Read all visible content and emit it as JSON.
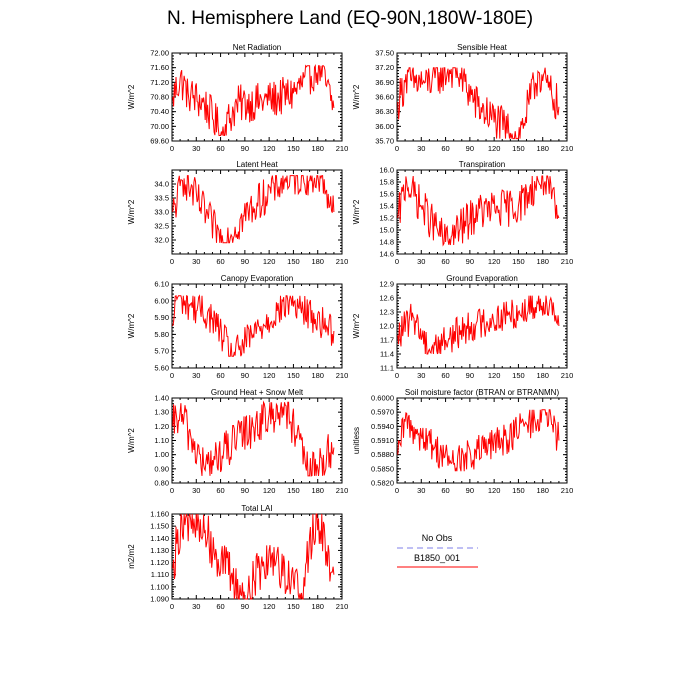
{
  "figure": {
    "title": "N. Hemisphere Land (EQ-90N,180W-180E)"
  },
  "legend": {
    "entries": [
      {
        "label": "No Obs",
        "color": "#9999ee",
        "style": "dashed"
      },
      {
        "label": "B1850_001",
        "color": "#ff0000",
        "style": "solid"
      }
    ]
  },
  "chart_data": [
    {
      "type": "line",
      "title": "Net Radiation",
      "xlabel": "",
      "ylabel": "W/m^2",
      "xlim": [
        0,
        210
      ],
      "ylim": [
        69.6,
        72.0
      ],
      "xticks": [
        0,
        30,
        60,
        90,
        120,
        150,
        180,
        210
      ],
      "yticks": [
        "69.60",
        "70.00",
        "70.40",
        "70.80",
        "71.20",
        "71.60",
        "72.00"
      ],
      "series": [
        {
          "name": "B1850_001",
          "color": "#ff0000",
          "x_start": 1,
          "x_end": 200,
          "key_values": [
            {
              "x": 1,
              "y": 70.8
            },
            {
              "x": 10,
              "y": 71.3
            },
            {
              "x": 20,
              "y": 70.9
            },
            {
              "x": 40,
              "y": 70.6
            },
            {
              "x": 57,
              "y": 70.0
            },
            {
              "x": 60,
              "y": 69.75
            },
            {
              "x": 80,
              "y": 70.6
            },
            {
              "x": 120,
              "y": 70.7
            },
            {
              "x": 150,
              "y": 70.9
            },
            {
              "x": 182,
              "y": 71.65
            },
            {
              "x": 200,
              "y": 70.5
            }
          ],
          "approx_mean": 70.7,
          "approx_min": 69.75,
          "approx_max": 71.65
        }
      ]
    },
    {
      "type": "line",
      "title": "Sensible Heat",
      "xlabel": "",
      "ylabel": "W/m^2",
      "xlim": [
        0,
        210
      ],
      "ylim": [
        35.7,
        37.5
      ],
      "xticks": [
        0,
        30,
        60,
        90,
        120,
        150,
        180,
        210
      ],
      "yticks": [
        "35.70",
        "36.00",
        "36.30",
        "36.60",
        "36.90",
        "37.20",
        "37.50"
      ],
      "series": [
        {
          "name": "B1850_001",
          "color": "#ff0000",
          "x_start": 1,
          "x_end": 200,
          "key_values": [
            {
              "x": 1,
              "y": 36.5
            },
            {
              "x": 10,
              "y": 36.9
            },
            {
              "x": 35,
              "y": 36.9
            },
            {
              "x": 72,
              "y": 37.2
            },
            {
              "x": 100,
              "y": 36.4
            },
            {
              "x": 150,
              "y": 35.75
            },
            {
              "x": 175,
              "y": 37.1
            },
            {
              "x": 200,
              "y": 36.4
            }
          ],
          "approx_mean": 36.45,
          "approx_min": 35.75,
          "approx_max": 37.2
        }
      ]
    },
    {
      "type": "line",
      "title": "Latent Heat",
      "xlabel": "",
      "ylabel": "W/m^2",
      "xlim": [
        0,
        210
      ],
      "ylim": [
        31.5,
        34.5
      ],
      "xticks": [
        0,
        30,
        60,
        90,
        120,
        150,
        180,
        210
      ],
      "yticks": [
        "32.0",
        "32.5",
        "33.0",
        "33.5",
        "34.0"
      ],
      "series": [
        {
          "name": "B1850_001",
          "color": "#ff0000",
          "x_start": 1,
          "x_end": 200,
          "key_values": [
            {
              "x": 1,
              "y": 33.0
            },
            {
              "x": 15,
              "y": 34.2
            },
            {
              "x": 63,
              "y": 31.9
            },
            {
              "x": 100,
              "y": 33.2
            },
            {
              "x": 140,
              "y": 34.2
            },
            {
              "x": 185,
              "y": 34.3
            },
            {
              "x": 200,
              "y": 33.0
            }
          ],
          "approx_mean": 33.1,
          "approx_min": 31.9,
          "approx_max": 34.3
        }
      ]
    },
    {
      "type": "line",
      "title": "Transpiration",
      "xlabel": "",
      "ylabel": "W/m^2",
      "xlim": [
        0,
        210
      ],
      "ylim": [
        14.6,
        16.0
      ],
      "xticks": [
        0,
        30,
        60,
        90,
        120,
        150,
        180,
        210
      ],
      "yticks": [
        "14.6",
        "14.8",
        "15.0",
        "15.2",
        "15.4",
        "15.6",
        "15.8",
        "16.0"
      ],
      "series": [
        {
          "name": "B1850_001",
          "color": "#ff0000",
          "x_start": 1,
          "x_end": 200,
          "key_values": [
            {
              "x": 1,
              "y": 15.2
            },
            {
              "x": 12,
              "y": 15.8
            },
            {
              "x": 30,
              "y": 15.4
            },
            {
              "x": 60,
              "y": 14.8
            },
            {
              "x": 100,
              "y": 15.3
            },
            {
              "x": 150,
              "y": 15.4
            },
            {
              "x": 180,
              "y": 15.9
            },
            {
              "x": 200,
              "y": 15.2
            }
          ],
          "approx_mean": 15.3,
          "approx_min": 14.75,
          "approx_max": 15.9
        }
      ]
    },
    {
      "type": "line",
      "title": "Canopy Evaporation",
      "xlabel": "",
      "ylabel": "W/m^2",
      "xlim": [
        0,
        210
      ],
      "ylim": [
        5.6,
        6.1
      ],
      "xticks": [
        0,
        30,
        60,
        90,
        120,
        150,
        180,
        210
      ],
      "yticks": [
        "5.60",
        "5.70",
        "5.80",
        "5.90",
        "6.00",
        "6.10"
      ],
      "series": [
        {
          "name": "B1850_001",
          "color": "#ff0000",
          "x_start": 1,
          "x_end": 200,
          "key_values": [
            {
              "x": 1,
              "y": 5.85
            },
            {
              "x": 5,
              "y": 6.03
            },
            {
              "x": 50,
              "y": 5.9
            },
            {
              "x": 75,
              "y": 5.67
            },
            {
              "x": 110,
              "y": 5.85
            },
            {
              "x": 145,
              "y": 6.0
            },
            {
              "x": 200,
              "y": 5.82
            }
          ],
          "approx_mean": 5.85,
          "approx_min": 5.67,
          "approx_max": 6.03
        }
      ]
    },
    {
      "type": "line",
      "title": "Ground Evaporation",
      "xlabel": "",
      "ylabel": "W/m^2",
      "xlim": [
        0,
        210
      ],
      "ylim": [
        11.1,
        12.9
      ],
      "xticks": [
        0,
        30,
        60,
        90,
        120,
        150,
        180,
        210
      ],
      "yticks": [
        "11.1",
        "11.4",
        "11.7",
        "12.0",
        "12.3",
        "12.6",
        "12.9"
      ],
      "series": [
        {
          "name": "B1850_001",
          "color": "#ff0000",
          "x_start": 1,
          "x_end": 200,
          "key_values": [
            {
              "x": 1,
              "y": 11.8
            },
            {
              "x": 20,
              "y": 12.2
            },
            {
              "x": 40,
              "y": 11.5
            },
            {
              "x": 90,
              "y": 12.0
            },
            {
              "x": 150,
              "y": 12.3
            },
            {
              "x": 190,
              "y": 12.6
            },
            {
              "x": 200,
              "y": 12.0
            }
          ],
          "approx_mean": 12.05,
          "approx_min": 11.4,
          "approx_max": 12.65
        }
      ]
    },
    {
      "type": "line",
      "title": "Ground Heat + Snow Melt",
      "xlabel": "",
      "ylabel": "W/m^2",
      "xlim": [
        0,
        210
      ],
      "ylim": [
        0.8,
        1.4
      ],
      "xticks": [
        0,
        30,
        60,
        90,
        120,
        150,
        180,
        210
      ],
      "yticks": [
        "0.80",
        "0.90",
        "1.00",
        "1.10",
        "1.20",
        "1.30",
        "1.40"
      ],
      "series": [
        {
          "name": "B1850_001",
          "color": "#ff0000",
          "x_start": 1,
          "x_end": 200,
          "key_values": [
            {
              "x": 1,
              "y": 1.2
            },
            {
              "x": 10,
              "y": 1.3
            },
            {
              "x": 40,
              "y": 0.9
            },
            {
              "x": 100,
              "y": 1.2
            },
            {
              "x": 140,
              "y": 1.35
            },
            {
              "x": 170,
              "y": 0.85
            },
            {
              "x": 200,
              "y": 1.05
            }
          ],
          "approx_mean": 1.1,
          "approx_min": 0.85,
          "approx_max": 1.37
        }
      ]
    },
    {
      "type": "line",
      "title": "Soil moisture factor (BTRAN or BTRANMN)",
      "xlabel": "",
      "ylabel": "unitless",
      "xlim": [
        0,
        210
      ],
      "ylim": [
        0.582,
        0.6
      ],
      "xticks": [
        0,
        30,
        60,
        90,
        120,
        150,
        180,
        210
      ],
      "yticks": [
        "0.5820",
        "0.5850",
        "0.5880",
        "0.5910",
        "0.5940",
        "0.5970",
        "0.6000"
      ],
      "series": [
        {
          "name": "B1850_001",
          "color": "#ff0000",
          "x_start": 1,
          "x_end": 200,
          "key_values": [
            {
              "x": 1,
              "y": 0.588
            },
            {
              "x": 10,
              "y": 0.595
            },
            {
              "x": 30,
              "y": 0.592
            },
            {
              "x": 70,
              "y": 0.586
            },
            {
              "x": 130,
              "y": 0.591
            },
            {
              "x": 185,
              "y": 0.597
            },
            {
              "x": 200,
              "y": 0.591
            }
          ],
          "approx_mean": 0.591,
          "approx_min": 0.5845,
          "approx_max": 0.5975
        }
      ]
    },
    {
      "type": "line",
      "title": "Total LAI",
      "xlabel": "",
      "ylabel": "m2/m2",
      "xlim": [
        0,
        210
      ],
      "ylim": [
        1.09,
        1.16
      ],
      "xticks": [
        0,
        30,
        60,
        90,
        120,
        150,
        180,
        210
      ],
      "yticks": [
        "1.090",
        "1.100",
        "1.110",
        "1.120",
        "1.130",
        "1.140",
        "1.150",
        "1.160"
      ],
      "series": [
        {
          "name": "B1850_001",
          "color": "#ff0000",
          "x_start": 1,
          "x_end": 200,
          "key_values": [
            {
              "x": 1,
              "y": 1.115
            },
            {
              "x": 12,
              "y": 1.158
            },
            {
              "x": 40,
              "y": 1.145
            },
            {
              "x": 90,
              "y": 1.09
            },
            {
              "x": 120,
              "y": 1.13
            },
            {
              "x": 160,
              "y": 1.095
            },
            {
              "x": 178,
              "y": 1.16
            },
            {
              "x": 200,
              "y": 1.11
            }
          ],
          "approx_mean": 1.125,
          "approx_min": 1.09,
          "approx_max": 1.16
        }
      ]
    }
  ]
}
